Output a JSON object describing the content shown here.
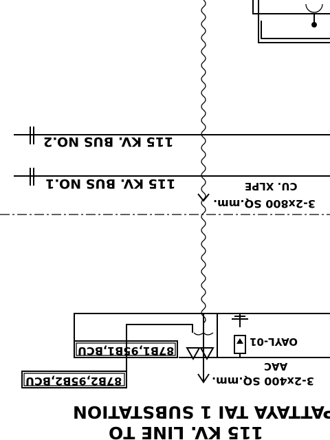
{
  "labels": {
    "bus2": "115 KV. BUS NO.2",
    "bus1": "115 KV. BUS NO.1",
    "cable_top_type": "CU. XLPE",
    "cable_top_size": "3-2x800 SQ.mm.",
    "relay1": "87B1,95B1,BCU",
    "relay2": "87B2,95B2,BCU",
    "arrester": "OAYL-01",
    "conductor_type": "AAC",
    "conductor_size": "3-2x400 SQ.mm.",
    "title_line1": "PATTAYA TAI 1 SUBSTATION",
    "title_line2": "115 KV. LINE TO"
  },
  "note": ""
}
